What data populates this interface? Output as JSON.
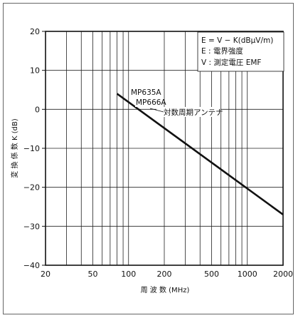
{
  "chart_data": {
    "type": "line",
    "xscale": "log",
    "xlim": [
      20,
      2000
    ],
    "ylim": [
      -40,
      20
    ],
    "xlabel": "周 波 数 (MHz)",
    "ylabel": "変 換 係 数 K (dB)",
    "x_ticks": [
      20,
      50,
      100,
      200,
      500,
      1000,
      2000
    ],
    "x_tick_labels": [
      "20",
      "50",
      "100",
      "200",
      "500",
      "1000",
      "2000"
    ],
    "y_ticks": [
      20,
      10,
      0,
      -10,
      -20,
      -30,
      -40
    ],
    "y_tick_labels": [
      "20",
      "10",
      "0",
      "−10",
      "−20",
      "−30",
      "−40"
    ],
    "grid": true,
    "series": [
      {
        "x": [
          80,
          2000
        ],
        "y": [
          4,
          -27
        ]
      }
    ],
    "legend_box": {
      "position": "top-right",
      "lines": [
        "E = V − K(dBμV/m)",
        "E : 電界強度",
        "V : 測定電圧 EMF"
      ]
    },
    "annotation": {
      "lines": [
        "MP635A",
        "MP666A",
        "対数周期アンテナ"
      ]
    }
  }
}
